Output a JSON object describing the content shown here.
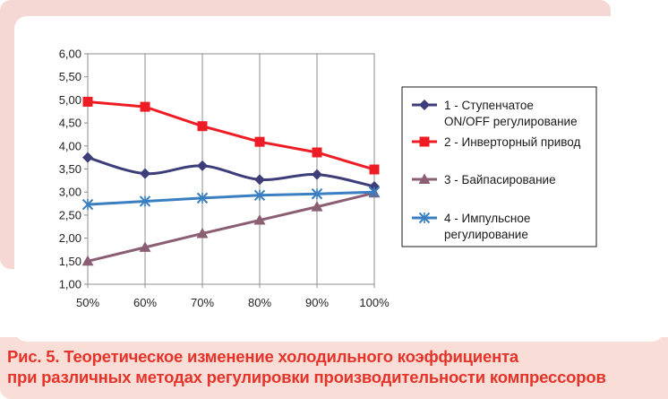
{
  "chart_data": {
    "type": "line",
    "categories": [
      "50%",
      "60%",
      "70%",
      "80%",
      "90%",
      "100%"
    ],
    "ylim": [
      1.0,
      6.0
    ],
    "yticks": [
      "1,00",
      "1,50",
      "2,00",
      "2,50",
      "3,00",
      "3,50",
      "4,00",
      "4,50",
      "5,00",
      "5,50",
      "6,00"
    ],
    "ytick_values": [
      1.0,
      1.5,
      2.0,
      2.5,
      3.0,
      3.5,
      4.0,
      4.5,
      5.0,
      5.5,
      6.0
    ],
    "grid": "vertical",
    "legend_position": "right",
    "series": [
      {
        "name": "1 - Ступенчатое ON/OFF регулирование",
        "legend_lines": [
          "1 - Ступенчатое",
          "ON/OFF регулирование"
        ],
        "color": "#3d3d7a",
        "marker": "diamond",
        "smooth": true,
        "values": [
          3.75,
          3.4,
          3.57,
          3.27,
          3.38,
          3.12
        ]
      },
      {
        "name": "2 - Инверторный привод",
        "legend_lines": [
          "2 - Инверторный привод"
        ],
        "color": "#ee1c25",
        "marker": "square",
        "smooth": false,
        "values": [
          4.96,
          4.85,
          4.43,
          4.09,
          3.86,
          3.49
        ]
      },
      {
        "name": "3 - Байпасирование",
        "legend_lines": [
          "3 - Байпасирование"
        ],
        "color": "#8b5e74",
        "marker": "triangle",
        "smooth": false,
        "values": [
          1.5,
          1.8,
          2.1,
          2.39,
          2.68,
          2.98
        ]
      },
      {
        "name": "4 - Импульсное регулирование",
        "legend_lines": [
          "4 - Импульсное",
          "регулирование"
        ],
        "color": "#3a7fc1",
        "marker": "star",
        "smooth": false,
        "values": [
          2.73,
          2.8,
          2.87,
          2.93,
          2.96,
          3.0
        ]
      }
    ]
  },
  "caption": {
    "label": "Рис. 5.",
    "line1": "Теоретическое изменение холодильного коэффициента",
    "line2": "при различных методах регулировки производительности компрессоров"
  }
}
